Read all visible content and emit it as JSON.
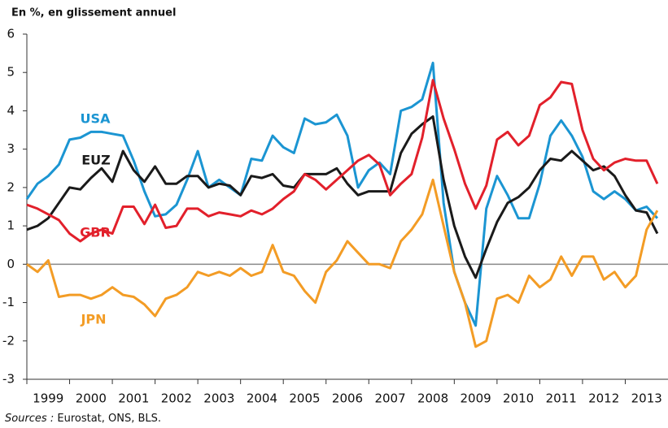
{
  "chart_data": {
    "type": "line",
    "title": "En %, en glissement annuel",
    "source_label": "Sources :",
    "source_text": "Eurostat, ONS, BLS.",
    "x": [
      1999,
      1999.25,
      1999.5,
      1999.75,
      2000,
      2000.25,
      2000.5,
      2000.75,
      2001,
      2001.25,
      2001.5,
      2001.75,
      2002,
      2002.25,
      2002.5,
      2002.75,
      2003,
      2003.25,
      2003.5,
      2003.75,
      2004,
      2004.25,
      2004.5,
      2004.75,
      2005,
      2005.25,
      2005.5,
      2005.75,
      2006,
      2006.25,
      2006.5,
      2006.75,
      2007,
      2007.25,
      2007.5,
      2007.75,
      2008,
      2008.25,
      2008.5,
      2008.75,
      2009,
      2009.25,
      2009.5,
      2009.75,
      2010,
      2010.25,
      2010.5,
      2010.75,
      2011,
      2011.25,
      2011.5,
      2011.75,
      2012,
      2012.25,
      2012.5,
      2012.75,
      2013,
      2013.25,
      2013.5,
      2013.75
    ],
    "xlim": [
      1999,
      2014
    ],
    "xticks": [
      1999,
      2000,
      2001,
      2002,
      2003,
      2004,
      2005,
      2006,
      2007,
      2008,
      2009,
      2010,
      2011,
      2012,
      2013
    ],
    "ylim": [
      -3,
      6
    ],
    "yticks": [
      -3,
      -2,
      -1,
      0,
      1,
      2,
      3,
      4,
      5,
      6
    ],
    "grid": false,
    "series": [
      {
        "name": "USA",
        "color": "#1b95d2",
        "values": [
          1.7,
          2.1,
          2.3,
          2.6,
          3.25,
          3.3,
          3.45,
          3.45,
          3.4,
          3.35,
          2.7,
          1.9,
          1.25,
          1.3,
          1.55,
          2.2,
          2.95,
          2.0,
          2.2,
          2.0,
          1.8,
          2.75,
          2.7,
          3.35,
          3.05,
          2.9,
          3.8,
          3.65,
          3.7,
          3.9,
          3.35,
          2.0,
          2.45,
          2.65,
          2.35,
          4.0,
          4.1,
          4.3,
          5.25,
          1.6,
          -0.2,
          -1.0,
          -1.6,
          1.45,
          2.3,
          1.8,
          1.2,
          1.2,
          2.1,
          3.35,
          3.75,
          3.35,
          2.8,
          1.9,
          1.7,
          1.9,
          1.7,
          1.4,
          1.5,
          1.2
        ]
      },
      {
        "name": "EUZ",
        "color": "#1a1a1a",
        "values": [
          0.9,
          1.0,
          1.2,
          1.6,
          2.0,
          1.95,
          2.25,
          2.5,
          2.15,
          2.95,
          2.45,
          2.15,
          2.55,
          2.1,
          2.1,
          2.3,
          2.3,
          2.0,
          2.1,
          2.05,
          1.8,
          2.3,
          2.25,
          2.35,
          2.05,
          2.0,
          2.35,
          2.35,
          2.35,
          2.5,
          2.1,
          1.8,
          1.9,
          1.9,
          1.9,
          2.9,
          3.4,
          3.65,
          3.85,
          2.2,
          1.0,
          0.2,
          -0.35,
          0.4,
          1.1,
          1.6,
          1.75,
          2.0,
          2.45,
          2.75,
          2.7,
          2.95,
          2.7,
          2.45,
          2.55,
          2.3,
          1.8,
          1.4,
          1.35,
          0.8
        ]
      },
      {
        "name": "GBR",
        "color": "#e2202b",
        "values": [
          1.55,
          1.45,
          1.3,
          1.15,
          0.8,
          0.6,
          0.8,
          0.9,
          0.8,
          1.5,
          1.5,
          1.05,
          1.55,
          0.95,
          1.0,
          1.45,
          1.45,
          1.25,
          1.35,
          1.3,
          1.25,
          1.4,
          1.3,
          1.45,
          1.7,
          1.9,
          2.35,
          2.2,
          1.95,
          2.2,
          2.45,
          2.7,
          2.85,
          2.6,
          1.8,
          2.1,
          2.35,
          3.3,
          4.8,
          3.8,
          3.0,
          2.1,
          1.45,
          2.05,
          3.25,
          3.45,
          3.1,
          3.35,
          4.15,
          4.35,
          4.75,
          4.7,
          3.5,
          2.75,
          2.45,
          2.65,
          2.75,
          2.7,
          2.7,
          2.1
        ]
      },
      {
        "name": "JPN",
        "color": "#f39c25",
        "values": [
          0.0,
          -0.2,
          0.1,
          -0.85,
          -0.8,
          -0.8,
          -0.9,
          -0.8,
          -0.6,
          -0.8,
          -0.85,
          -1.05,
          -1.35,
          -0.9,
          -0.8,
          -0.6,
          -0.2,
          -0.3,
          -0.2,
          -0.3,
          -0.1,
          -0.3,
          -0.2,
          0.5,
          -0.2,
          -0.3,
          -0.7,
          -1.0,
          -0.2,
          0.1,
          0.6,
          0.3,
          0.0,
          0.0,
          -0.1,
          0.6,
          0.9,
          1.3,
          2.2,
          1.0,
          -0.2,
          -1.0,
          -2.15,
          -2.0,
          -0.9,
          -0.8,
          -1.0,
          -0.3,
          -0.6,
          -0.4,
          0.2,
          -0.3,
          0.2,
          0.2,
          -0.4,
          -0.2,
          -0.6,
          -0.3,
          0.9,
          1.4
        ]
      }
    ]
  }
}
